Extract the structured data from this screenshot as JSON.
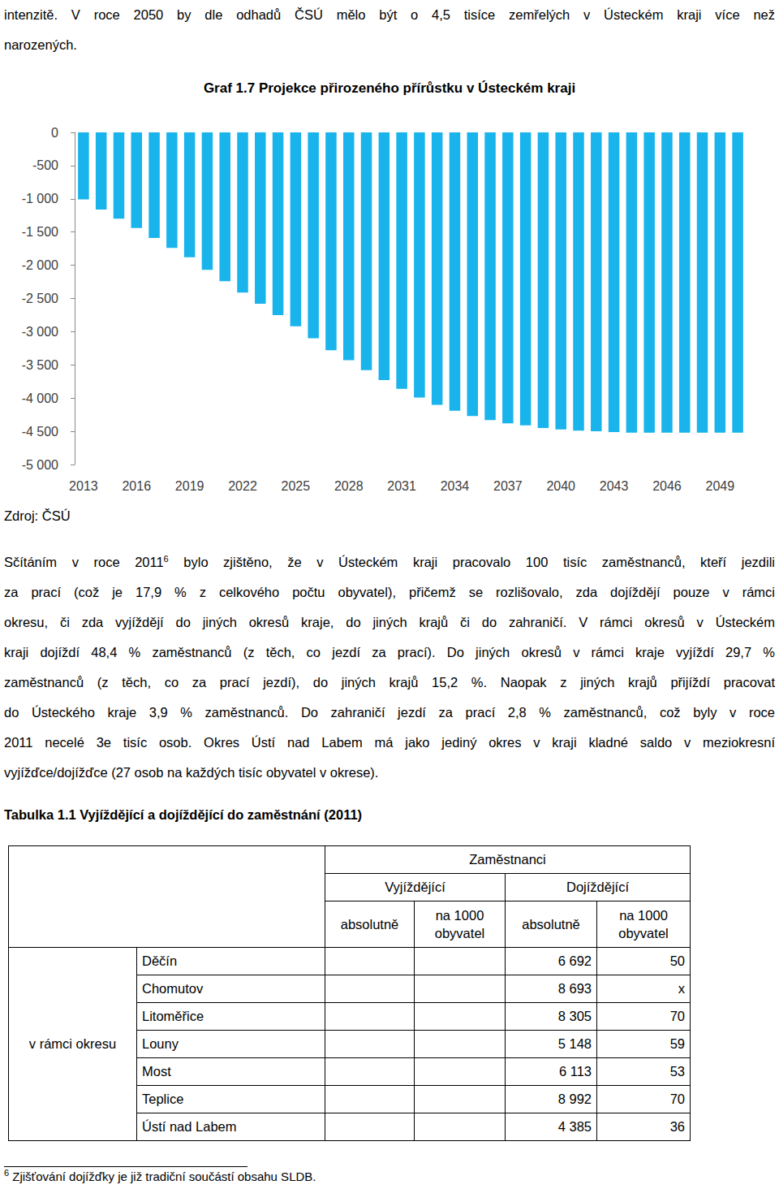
{
  "intro_lines": [
    "intenzitě. V roce 2050 by dle odhadů ČSÚ mělo být o 4,5 tisíce zemřelých v Ústeckém kraji více než",
    "narozených."
  ],
  "chart_data": {
    "type": "bar",
    "title": "Graf 1.7 Projekce přirozeného přírůstku v Ústeckém kraji",
    "source": "Zdroj: ČSÚ",
    "categories": [
      "2013",
      null,
      null,
      "2016",
      null,
      null,
      "2019",
      null,
      null,
      "2022",
      null,
      null,
      "2025",
      null,
      null,
      "2028",
      null,
      null,
      "2031",
      null,
      null,
      "2034",
      null,
      null,
      "2037",
      null,
      null,
      "2040",
      null,
      null,
      "2043",
      null,
      null,
      "2046",
      null,
      null,
      "2049",
      null
    ],
    "values": [
      -1010,
      -1160,
      -1300,
      -1440,
      -1590,
      -1740,
      -1880,
      -2070,
      -2240,
      -2410,
      -2580,
      -2750,
      -2920,
      -3100,
      -3280,
      -3430,
      -3580,
      -3730,
      -3860,
      -3990,
      -4100,
      -4190,
      -4270,
      -4330,
      -4380,
      -4410,
      -4450,
      -4470,
      -4490,
      -4500,
      -4510,
      -4520,
      -4520,
      -4520,
      -4520,
      -4520,
      -4520,
      -4520
    ],
    "color": "#19b4eb",
    "ylim": [
      -5000,
      0
    ],
    "yticks": [
      {
        "value": -5000,
        "label": "-5 000"
      },
      {
        "value": -4500,
        "label": "-4 500"
      },
      {
        "value": -4000,
        "label": "-4 000"
      },
      {
        "value": -3500,
        "label": "-3 500"
      },
      {
        "value": -3000,
        "label": "-3 000"
      },
      {
        "value": -2500,
        "label": "-2 500"
      },
      {
        "value": -2000,
        "label": "-2 000"
      },
      {
        "value": -1500,
        "label": "-1 500"
      },
      {
        "value": -1000,
        "label": "-1 000"
      },
      -500,
      0
    ],
    "grid": false,
    "data_labels": false
  },
  "paragraph": {
    "first_line": {
      "before": "Sčítáním v roce 2011",
      "sup": "6",
      "after": " bylo zjištěno, že v Ústeckém kraji pracovalo 100 tisíc zaměstnanců, kteří jezdili"
    },
    "lines": [
      "za prací (což je 17,9 % z celkového počtu obyvatel), přičemž se rozlišovalo, zda dojíždějí pouze v rámci",
      "okresu, či zda vyjíždějí do jiných okresů kraje, do jiných krajů či do zahraničí. V rámci okresů v Ústeckém",
      "kraji dojíždí 48,4 % zaměstnanců (z těch, co jezdí za prací). Do jiných okresů v rámci kraje vyjíždí 29,7 %",
      "zaměstnanců (z těch, co za prací jezdí), do jiných krajů 15,2 %. Naopak z jiných krajů přijíždí pracovat",
      "do Ústeckého kraje 3,9 % zaměstnanců. Do zahraničí jezdí za prací 2,8 % zaměstnanců, což byly v roce",
      "2011 necelé 3e tisíc osob. Okres Ústí nad Labem má jako jediný okres v kraji kladné saldo v meziokresní",
      "vyjížďce/dojížďce (27 osob na každých tisíc obyvatel v okrese)."
    ]
  },
  "table": {
    "title": "Tabulka 1.1 Vyjíždějící a dojíždějící do zaměstnání (2011)",
    "header": {
      "top": "Zaměstnanci",
      "groups": [
        "Vyjíždějící",
        "Dojíždějící"
      ],
      "sub": [
        "absolutně",
        "na 1000 obyvatel",
        "absolutně",
        "na 1000 obyvatel"
      ]
    },
    "row_group": "v rámci okresu",
    "rows": [
      {
        "district": "Děčín",
        "dojizdejici_absolutne": "6 692",
        "dojizdejici_na_1000": 50
      },
      {
        "district": "Chomutov",
        "dojizdejici_absolutne": "8 693",
        "dojizdejici_na_1000": "x"
      },
      {
        "district": "Litoměřice",
        "dojizdejici_absolutne": "8 305",
        "dojizdejici_na_1000": 70
      },
      {
        "district": "Louny",
        "dojizdejici_absolutne": "5 148",
        "dojizdejici_na_1000": 59
      },
      {
        "district": "Most",
        "dojizdejici_absolutne": "6 113",
        "dojizdejici_na_1000": 53
      },
      {
        "district": "Teplice",
        "dojizdejici_absolutne": "8 992",
        "dojizdejici_na_1000": 70
      },
      {
        "district": "Ústí nad Labem",
        "dojizdejici_absolutne": "4 385",
        "dojizdejici_na_1000": 36
      }
    ]
  },
  "footnote": {
    "sup": "6",
    "text": "Zjišťování dojížďky je již tradiční součástí obsahu SLDB."
  }
}
